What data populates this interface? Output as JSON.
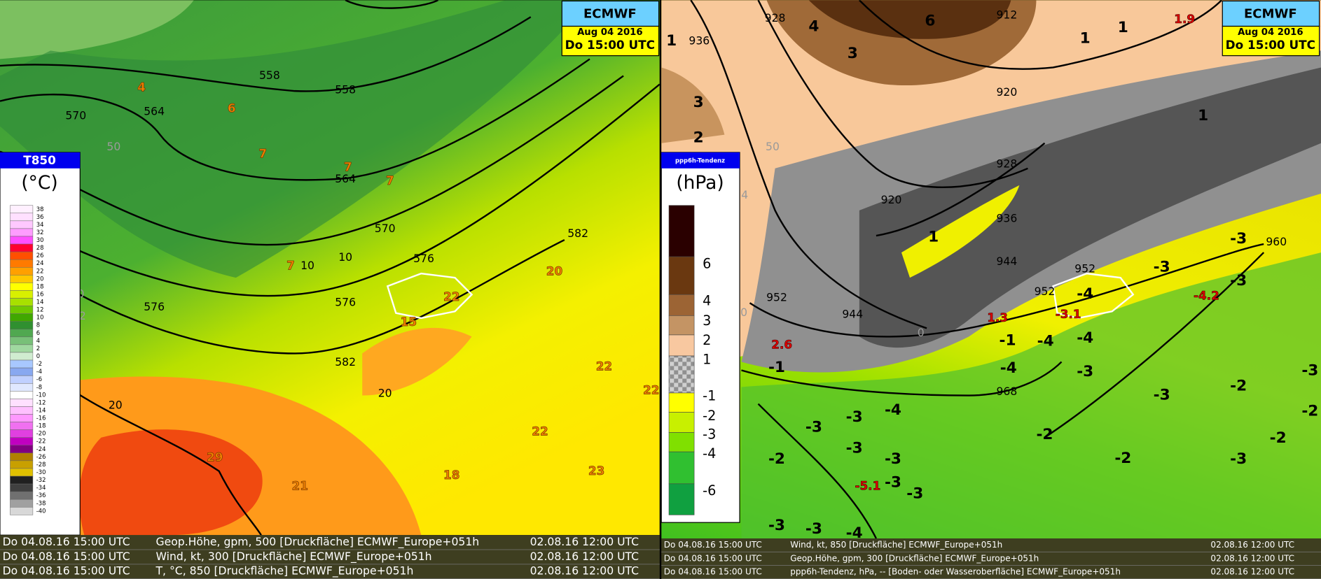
{
  "left_panel": {
    "header": {
      "model": "ECMWF",
      "date": "Aug 04 2016",
      "time": "Do 15:00 UTC"
    },
    "legend": {
      "title": "T850",
      "unit": "(°C)",
      "levels": [
        "38",
        "36",
        "34",
        "32",
        "30",
        "28",
        "26",
        "24",
        "22",
        "20",
        "18",
        "16",
        "14",
        "12",
        "10",
        "8",
        "6",
        "4",
        "2",
        "0",
        "-2",
        "-4",
        "-6",
        "-8",
        "-10",
        "-12",
        "-14",
        "-16",
        "-18",
        "-20",
        "-22",
        "-24",
        "-26",
        "-28",
        "-30",
        "-32",
        "-34",
        "-36",
        "-38",
        "-40"
      ]
    },
    "contour_labels": [
      "558",
      "558",
      "570",
      "564",
      "564",
      "570",
      "576",
      "576",
      "576",
      "582",
      "582",
      "20",
      "20",
      "10",
      "10",
      "50",
      "0",
      "2"
    ],
    "value_labels": [
      "4",
      "6",
      "7",
      "7",
      "7",
      "7",
      "20",
      "22",
      "15",
      "22",
      "22",
      "22",
      "18",
      "23",
      "29",
      "21"
    ],
    "footer": [
      {
        "valid": "Do 04.08.16 15:00 UTC",
        "desc": "Geop.Höhe, gpm, 500 [Druckfläche] ECMWF_Europe+051h",
        "run": "02.08.16 12:00 UTC"
      },
      {
        "valid": "Do 04.08.16 15:00 UTC",
        "desc": "Wind, kt, 300 [Druckfläche] ECMWF_Europe+051h",
        "run": "02.08.16 12:00 UTC"
      },
      {
        "valid": "Do 04.08.16 15:00 UTC",
        "desc": "T, °C, 850 [Druckfläche] ECMWF_Europe+051h",
        "run": "02.08.16 12:00 UTC"
      }
    ]
  },
  "right_panel": {
    "header": {
      "model": "ECMWF",
      "date": "Aug 04 2016",
      "time": "Do 15:00 UTC"
    },
    "legend": {
      "title": "ppp6h-Tendenz",
      "unit": "(hPa)",
      "levels": [
        "6",
        "4",
        "3",
        "2",
        "1",
        "-1",
        "-2",
        "-3",
        "-4",
        "-6"
      ]
    },
    "contour_labels": [
      "928",
      "936",
      "912",
      "920",
      "928",
      "920",
      "936",
      "944",
      "952",
      "952",
      "944",
      "952",
      "960",
      "968",
      "50",
      "4",
      "0",
      "0"
    ],
    "value_labels": [
      "1",
      "4",
      "6",
      "3",
      "3",
      "2",
      "1",
      "1",
      "1",
      "1",
      "-1",
      "-1",
      "-4",
      "-4",
      "-4",
      "-4",
      "-3",
      "-3",
      "-3",
      "-3",
      "-3",
      "-2",
      "-2",
      "-3",
      "-2",
      "-2",
      "-2",
      "-3",
      "-4",
      "-3",
      "-3",
      "-3",
      "-3",
      "-2",
      "-3",
      "-3",
      "-3",
      "-3",
      "-4"
    ],
    "extreme_labels": [
      "1.9",
      "2.6",
      "1.3",
      "-3.1",
      "-4.2",
      "-5.1"
    ],
    "footer": [
      {
        "valid": "Do 04.08.16 15:00 UTC",
        "desc": "Wind, kt, 850 [Druckfläche] ECMWF_Europe+051h",
        "run": "02.08.16 12:00 UTC"
      },
      {
        "valid": "Do 04.08.16 15:00 UTC",
        "desc": "Geop.Höhe, gpm, 300 [Druckfläche] ECMWF_Europe+051h",
        "run": "02.08.16 12:00 UTC"
      },
      {
        "valid": "Do 04.08.16 15:00 UTC",
        "desc": "ppp6h-Tendenz, hPa, -- [Boden- oder Wasseroberfläche] ECMWF_Europe+051h",
        "run": "02.08.16 12:00 UTC"
      }
    ]
  }
}
